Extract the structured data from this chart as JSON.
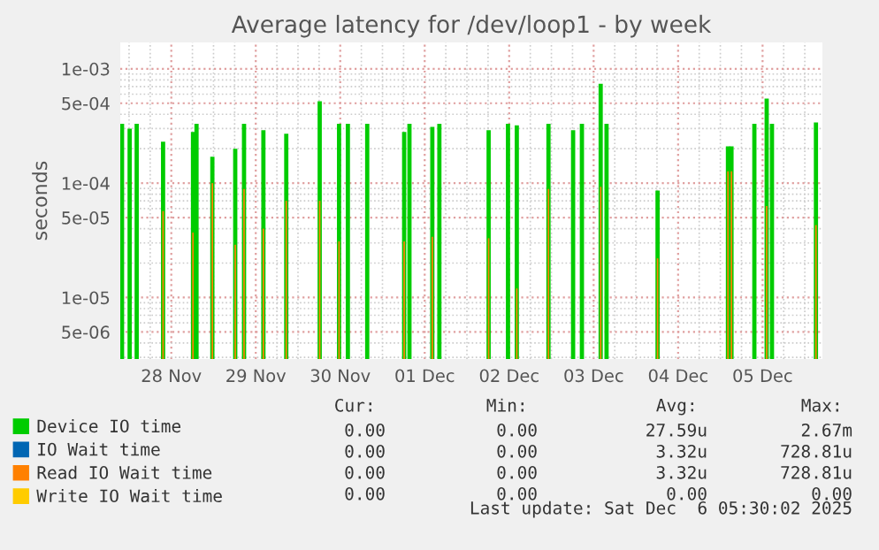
{
  "chart_data": {
    "type": "bar",
    "title": "Average latency for /dev/loop1 - by week",
    "ylabel": "seconds",
    "x": [
      "2025-11-27T22:00",
      "2025-11-28T00:10",
      "2025-11-28T02:10",
      "2025-11-28T09:40",
      "2025-11-28T18:10",
      "2025-11-28T19:10",
      "2025-11-28T23:40",
      "2025-11-29T06:10",
      "2025-11-29T08:40",
      "2025-11-29T14:10",
      "2025-11-29T20:40",
      "2025-11-30T06:10",
      "2025-11-30T11:40",
      "2025-11-30T14:10",
      "2025-11-30T19:40",
      "2025-12-01T06:10",
      "2025-12-01T07:40",
      "2025-12-01T14:10",
      "2025-12-01T16:10",
      "2025-12-02T06:10",
      "2025-12-02T11:40",
      "2025-12-02T14:10",
      "2025-12-02T23:10",
      "2025-12-03T06:10",
      "2025-12-03T08:40",
      "2025-12-03T14:00",
      "2025-12-03T15:40",
      "2025-12-04T06:10",
      "2025-12-05T02:10",
      "2025-12-05T03:10",
      "2025-12-05T09:40",
      "2025-12-05T13:10",
      "2025-12-05T14:40",
      "2025-12-06T03:10"
    ],
    "series": [
      {
        "name": "Device IO time",
        "color": "#00cc00",
        "values": [
          0.00033,
          0.0003,
          0.00033,
          0.00023,
          0.00028,
          0.00033,
          0.00017,
          0.0002,
          0.00033,
          0.00029,
          0.00027,
          0.00052,
          0.00033,
          0.00033,
          0.00033,
          0.00028,
          0.00033,
          0.00031,
          0.00033,
          0.00029,
          0.00033,
          0.00032,
          0.00033,
          0.00029,
          0.00033,
          0.00074,
          0.00033,
          8.6e-05,
          0.00021,
          0.00021,
          0.00033,
          0.00055,
          0.00033,
          0.00034
        ]
      },
      {
        "name": "IO Wait time",
        "color": "#0066b3",
        "values": [
          null,
          null,
          null,
          null,
          null,
          null,
          null,
          null,
          null,
          null,
          null,
          null,
          null,
          null,
          null,
          null,
          null,
          null,
          null,
          null,
          null,
          null,
          null,
          null,
          null,
          null,
          null,
          null,
          null,
          null,
          null,
          null,
          null,
          null
        ]
      },
      {
        "name": "Read IO Wait time",
        "color": "#ff8000",
        "values": [
          null,
          null,
          null,
          5.7e-05,
          3.7e-05,
          null,
          0.0001,
          2.9e-05,
          8.9e-05,
          4e-05,
          7e-05,
          7e-05,
          3.1e-05,
          null,
          null,
          3.1e-05,
          null,
          3.4e-05,
          null,
          3.3e-05,
          null,
          1.2e-05,
          8.9e-05,
          null,
          null,
          9.3e-05,
          null,
          2.2e-05,
          0.000127,
          0.000127,
          null,
          6.3e-05,
          null,
          4.3e-05
        ]
      },
      {
        "name": "Write IO Wait time",
        "color": "#ffcc00",
        "values": [
          null,
          null,
          null,
          null,
          null,
          null,
          null,
          null,
          null,
          null,
          null,
          null,
          null,
          null,
          null,
          null,
          null,
          null,
          null,
          null,
          null,
          null,
          null,
          null,
          null,
          null,
          null,
          null,
          null,
          null,
          null,
          null,
          null,
          null
        ]
      }
    ],
    "log": true,
    "ylim": [
      2.9e-06,
      0.0017
    ],
    "yticks": [
      {
        "value": 5e-06,
        "label": "5e-06"
      },
      {
        "value": 1e-05,
        "label": "1e-05"
      },
      {
        "value": 5e-05,
        "label": "5e-05"
      },
      {
        "value": 0.0001,
        "label": "1e-04"
      },
      {
        "value": 0.0005,
        "label": "5e-04"
      },
      {
        "value": 0.001,
        "label": "1e-03"
      }
    ],
    "xlim": [
      "2025-11-27T21:30",
      "2025-12-06T05:00"
    ],
    "xticks": [
      {
        "value": "2025-11-28T12:00",
        "label": "28 Nov"
      },
      {
        "value": "2025-11-29T12:00",
        "label": "29 Nov"
      },
      {
        "value": "2025-11-30T12:00",
        "label": "30 Nov"
      },
      {
        "value": "2025-12-01T12:00",
        "label": "01 Dec"
      },
      {
        "value": "2025-12-02T12:00",
        "label": "02 Dec"
      },
      {
        "value": "2025-12-03T12:00",
        "label": "03 Dec"
      },
      {
        "value": "2025-12-04T12:00",
        "label": "04 Dec"
      },
      {
        "value": "2025-12-05T12:00",
        "label": "05 Dec"
      }
    ],
    "grid": true,
    "legend": "bottom",
    "annotations": [
      "Cur:",
      "Min:",
      "Avg:",
      "Max:",
      "0.00",
      "0.00",
      "27.59u",
      "2.67m",
      "0.00",
      "0.00",
      "3.32u",
      "728.81u",
      "0.00",
      "0.00",
      "3.32u",
      "728.81u",
      "0.00",
      "0.00",
      "0.00",
      "0.00",
      "Last update: Sat Dec  6 05:30:02 2025"
    ]
  }
}
